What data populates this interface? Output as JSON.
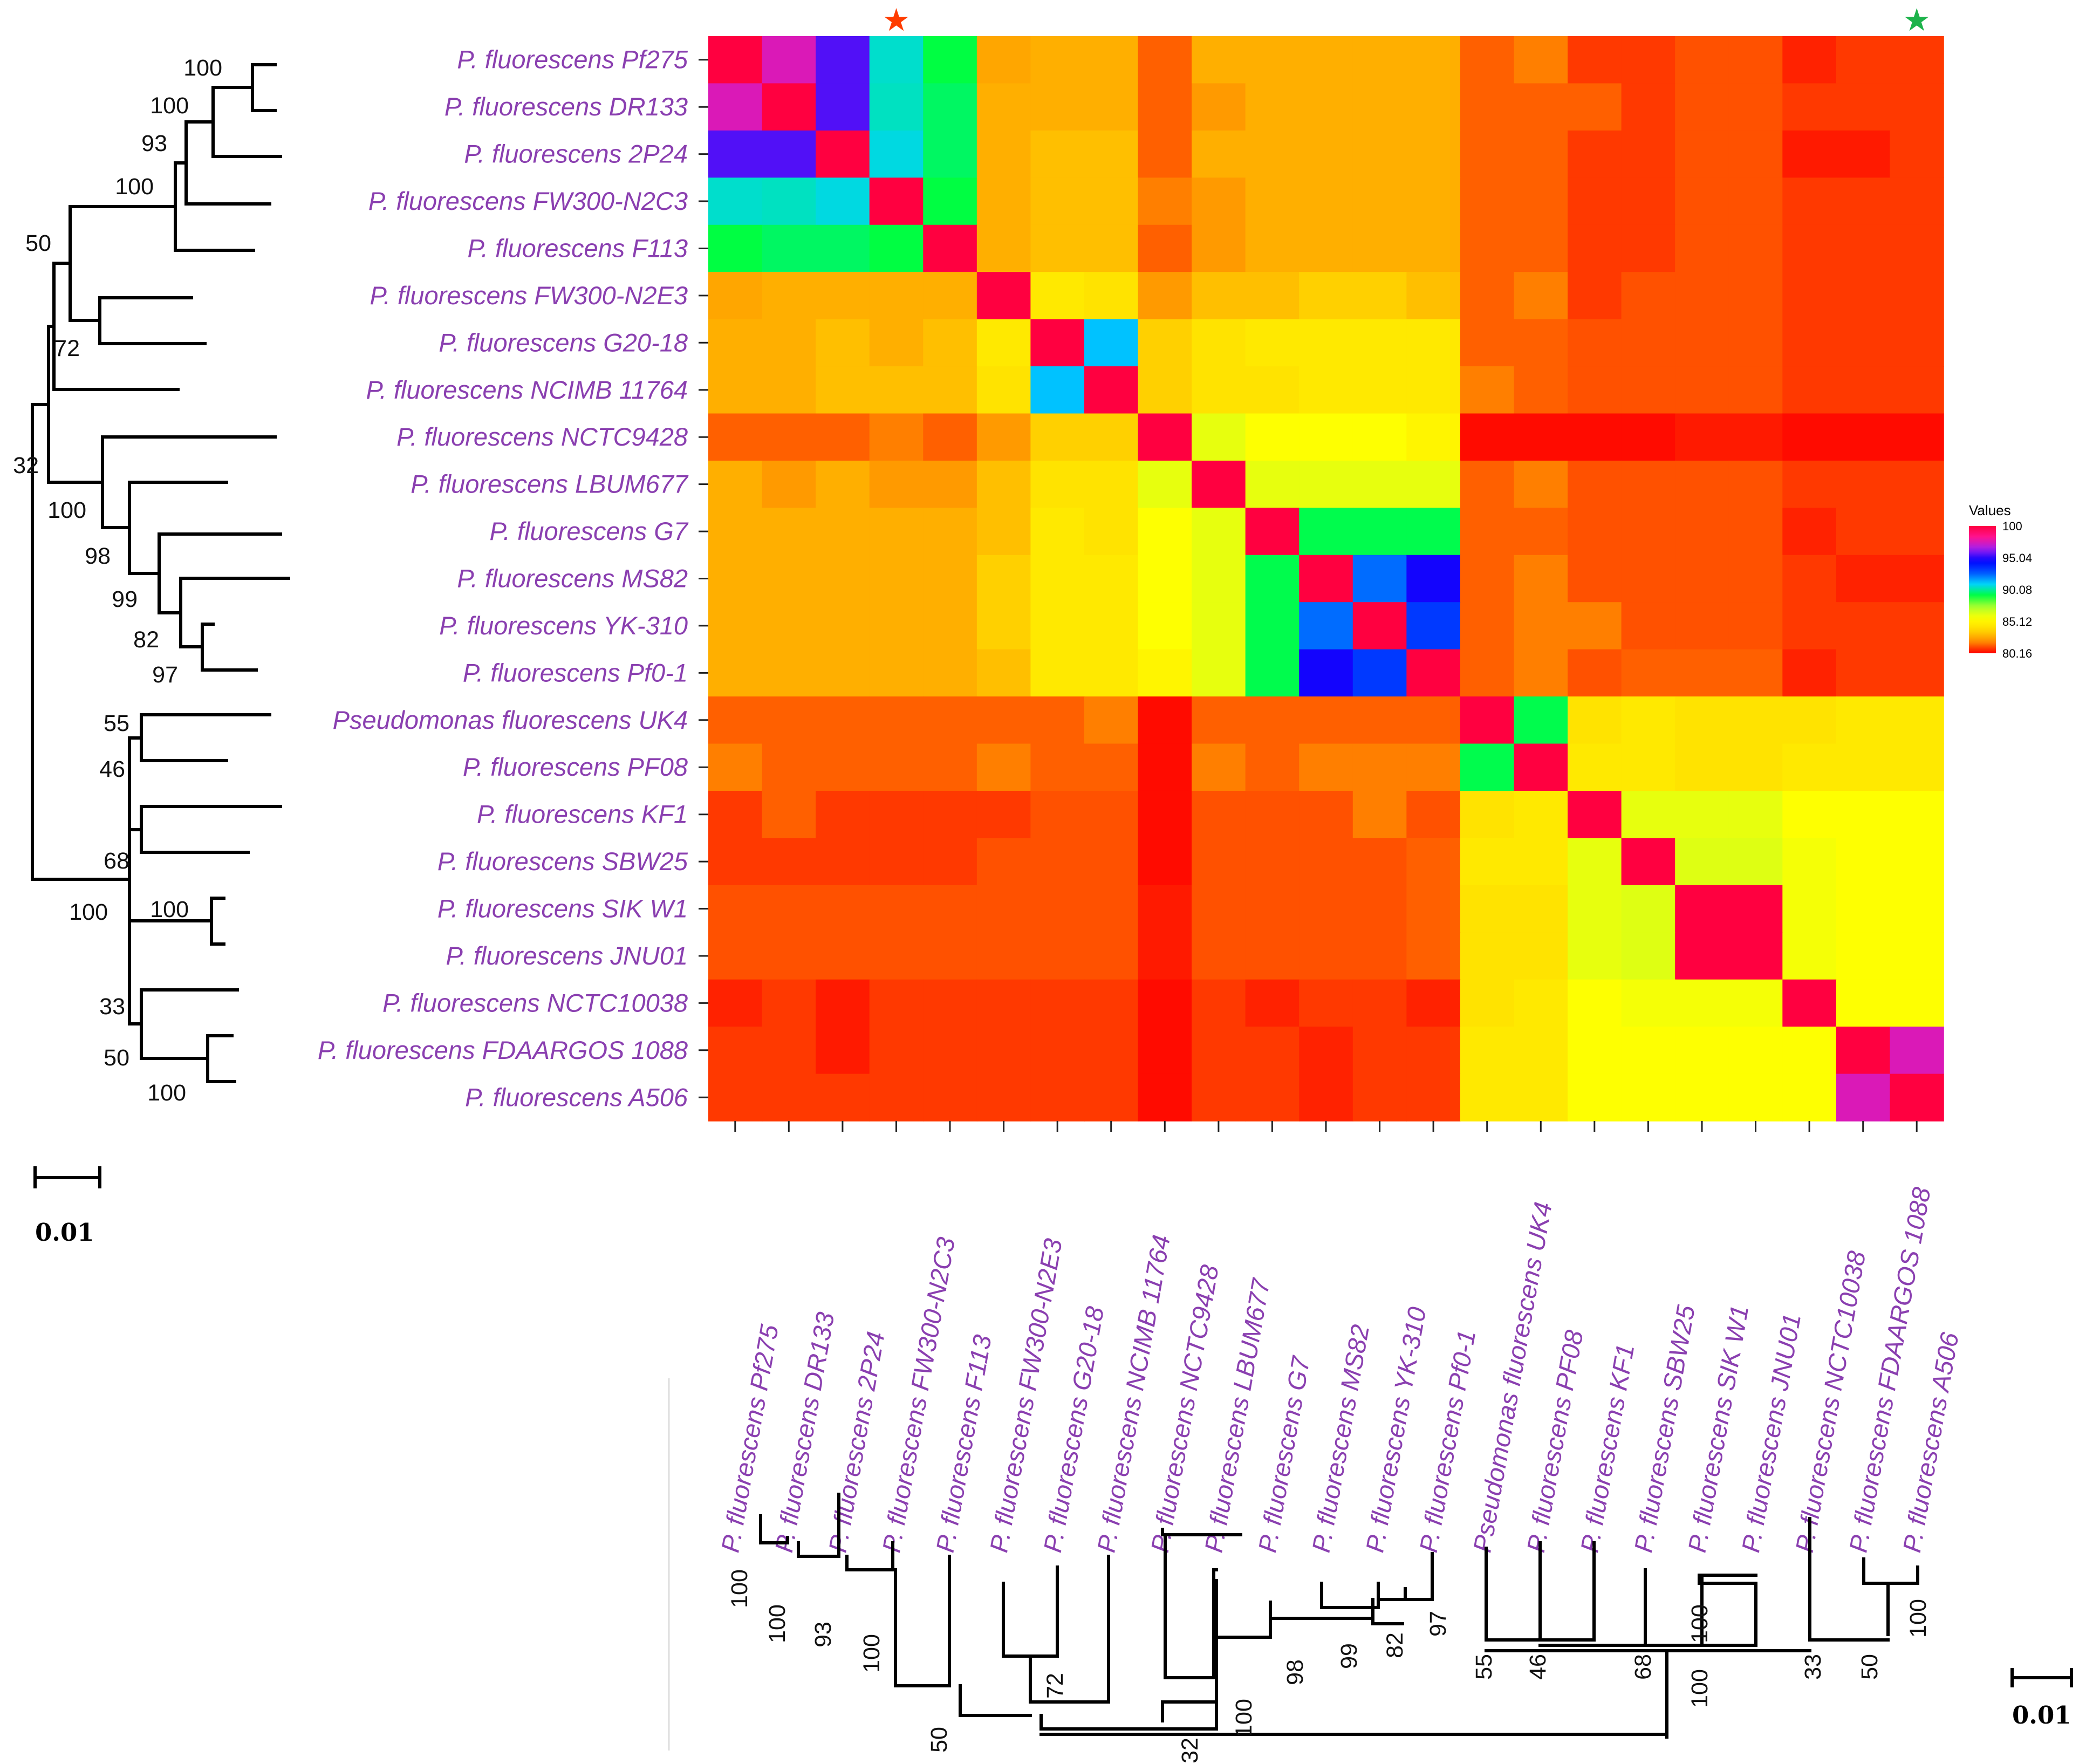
{
  "chart_data": {
    "type": "heatmap",
    "title": "",
    "strains": [
      "P. fluorescens Pf275",
      "P. fluorescens DR133",
      "P. fluorescens 2P24",
      "P. fluorescens FW300-N2C3",
      "P. fluorescens F113",
      "P. fluorescens FW300-N2E3",
      "P. fluorescens G20-18",
      "P. fluorescens NCIMB 11764",
      "P. fluorescens NCTC9428",
      "P. fluorescens LBUM677",
      "P. fluorescens G7",
      "P. fluorescens MS82",
      "P. fluorescens YK-310",
      "P. fluorescens Pf0-1",
      "Pseudomonas fluorescens UK4",
      "P. fluorescens PF08",
      "P. fluorescens KF1",
      "P. fluorescens SBW25",
      "P. fluorescens SIK W1",
      "P. fluorescens JNU01",
      "P. fluorescens NCTC10038",
      "P. fluorescens FDAARGOS 1088",
      "P. fluorescens A506"
    ],
    "matrix": [
      [
        100,
        97.5,
        95.5,
        90.5,
        89.2,
        82.6,
        82.8,
        82.8,
        81.4,
        82.8,
        82.8,
        82.8,
        82.8,
        82.8,
        81.4,
        81.8,
        80.9,
        80.9,
        81.2,
        81.2,
        80.6,
        80.9,
        80.9
      ],
      [
        97.5,
        100,
        95.5,
        90.4,
        89.5,
        82.8,
        82.8,
        82.8,
        81.4,
        82.3,
        82.8,
        82.8,
        82.8,
        82.8,
        81.4,
        81.4,
        81.4,
        80.9,
        81.2,
        81.2,
        80.9,
        80.9,
        80.9
      ],
      [
        95.5,
        95.5,
        100,
        90.7,
        89.5,
        82.8,
        83.2,
        83.2,
        81.4,
        82.8,
        82.8,
        82.8,
        82.8,
        82.8,
        81.4,
        81.4,
        80.9,
        80.9,
        81.2,
        81.2,
        80.5,
        80.5,
        80.9
      ],
      [
        90.5,
        90.4,
        90.7,
        100,
        89.2,
        82.8,
        83.2,
        83.2,
        81.8,
        82.3,
        82.8,
        82.8,
        82.8,
        82.8,
        81.4,
        81.4,
        80.9,
        80.9,
        81.2,
        81.2,
        80.9,
        80.9,
        80.9
      ],
      [
        89.2,
        89.5,
        89.5,
        89.2,
        100,
        82.8,
        83.2,
        83.2,
        81.4,
        82.3,
        82.8,
        82.8,
        82.8,
        82.8,
        81.4,
        81.4,
        80.9,
        80.9,
        81.2,
        81.2,
        80.9,
        80.9,
        80.9
      ],
      [
        82.6,
        82.8,
        82.8,
        82.8,
        82.8,
        100,
        84.6,
        84.3,
        82.3,
        83.2,
        83.2,
        83.6,
        83.6,
        83.2,
        81.4,
        81.8,
        80.9,
        81.2,
        81.2,
        81.2,
        80.9,
        80.9,
        80.9
      ],
      [
        82.8,
        82.8,
        83.2,
        82.8,
        83.2,
        84.6,
        100,
        91.2,
        83.6,
        84.3,
        84.6,
        84.6,
        84.6,
        84.6,
        81.4,
        81.4,
        81.2,
        81.2,
        81.2,
        81.2,
        80.9,
        80.9,
        80.9
      ],
      [
        82.8,
        82.8,
        83.2,
        83.2,
        83.2,
        84.3,
        91.2,
        100,
        83.6,
        84.3,
        84.3,
        84.6,
        84.6,
        84.6,
        81.8,
        81.4,
        81.2,
        81.2,
        81.2,
        81.2,
        80.9,
        80.9,
        80.9
      ],
      [
        81.4,
        81.4,
        81.4,
        81.8,
        81.4,
        82.3,
        83.6,
        83.6,
        100,
        86.1,
        85.6,
        85.6,
        85.6,
        85.1,
        80.3,
        80.3,
        80.3,
        80.3,
        80.5,
        80.5,
        80.3,
        80.3,
        80.3
      ],
      [
        82.8,
        82.3,
        82.8,
        82.3,
        82.3,
        83.2,
        84.3,
        84.3,
        86.1,
        100,
        86.1,
        86.1,
        86.1,
        86.1,
        81.4,
        81.8,
        81.2,
        81.2,
        81.2,
        81.2,
        80.9,
        80.9,
        80.9
      ],
      [
        82.8,
        82.8,
        82.8,
        82.8,
        82.8,
        83.2,
        84.6,
        84.3,
        85.6,
        86.1,
        100,
        89.3,
        89.3,
        89.3,
        81.4,
        81.4,
        81.2,
        81.2,
        81.2,
        81.2,
        80.6,
        80.9,
        80.9
      ],
      [
        82.8,
        82.8,
        82.8,
        82.8,
        82.8,
        83.6,
        84.6,
        84.6,
        85.6,
        86.1,
        89.3,
        100,
        92.4,
        94.8,
        81.4,
        81.8,
        81.2,
        81.2,
        81.2,
        81.2,
        80.9,
        80.6,
        80.6
      ],
      [
        82.8,
        82.8,
        82.8,
        82.8,
        82.8,
        83.6,
        84.6,
        84.6,
        85.6,
        86.1,
        89.3,
        92.4,
        100,
        93.3,
        81.4,
        81.8,
        81.8,
        81.2,
        81.2,
        81.2,
        80.9,
        80.9,
        80.9
      ],
      [
        82.8,
        82.8,
        82.8,
        82.8,
        82.8,
        83.2,
        84.6,
        84.6,
        85.1,
        86.1,
        89.3,
        94.8,
        93.3,
        100,
        81.4,
        81.8,
        81.2,
        81.4,
        81.4,
        81.4,
        80.6,
        80.9,
        80.9
      ],
      [
        81.4,
        81.4,
        81.4,
        81.4,
        81.4,
        81.4,
        81.4,
        81.8,
        80.3,
        81.4,
        81.4,
        81.4,
        81.4,
        81.4,
        100,
        89.3,
        84.3,
        84.6,
        84.3,
        84.3,
        84.3,
        84.6,
        84.6
      ],
      [
        81.8,
        81.4,
        81.4,
        81.4,
        81.4,
        81.8,
        81.4,
        81.4,
        80.3,
        81.8,
        81.4,
        81.8,
        81.8,
        81.8,
        89.3,
        100,
        84.6,
        84.6,
        84.3,
        84.3,
        84.6,
        84.6,
        84.6
      ],
      [
        80.9,
        81.4,
        80.9,
        80.9,
        80.9,
        80.9,
        81.2,
        81.2,
        80.3,
        81.2,
        81.2,
        81.2,
        81.8,
        81.2,
        84.3,
        84.6,
        100,
        86.1,
        86.1,
        86.1,
        85.6,
        85.6,
        85.6
      ],
      [
        80.9,
        80.9,
        80.9,
        80.9,
        80.9,
        81.2,
        81.2,
        81.2,
        80.3,
        81.2,
        81.2,
        81.2,
        81.2,
        81.4,
        84.6,
        84.6,
        86.1,
        100,
        86.3,
        86.3,
        85.8,
        85.6,
        85.6
      ],
      [
        81.2,
        81.2,
        81.2,
        81.2,
        81.2,
        81.2,
        81.2,
        81.2,
        80.5,
        81.2,
        81.2,
        81.2,
        81.2,
        81.4,
        84.3,
        84.3,
        86.1,
        86.3,
        100,
        100,
        85.8,
        85.6,
        85.6
      ],
      [
        81.2,
        81.2,
        81.2,
        81.2,
        81.2,
        81.2,
        81.2,
        81.2,
        80.5,
        81.2,
        81.2,
        81.2,
        81.2,
        81.4,
        84.3,
        84.3,
        86.1,
        86.3,
        100,
        100,
        85.8,
        85.6,
        85.6
      ],
      [
        80.6,
        80.9,
        80.5,
        80.9,
        80.9,
        80.9,
        80.9,
        80.9,
        80.3,
        80.9,
        80.6,
        80.9,
        80.9,
        80.6,
        84.3,
        84.6,
        85.6,
        85.8,
        85.8,
        85.8,
        100,
        85.6,
        85.6
      ],
      [
        80.9,
        80.9,
        80.5,
        80.9,
        80.9,
        80.9,
        80.9,
        80.9,
        80.3,
        80.9,
        80.9,
        80.6,
        80.9,
        80.9,
        84.6,
        84.6,
        85.6,
        85.6,
        85.6,
        85.6,
        85.6,
        100,
        97.5
      ],
      [
        80.9,
        80.9,
        80.9,
        80.9,
        80.9,
        80.9,
        80.9,
        80.9,
        80.3,
        80.9,
        80.9,
        80.6,
        80.9,
        80.9,
        84.6,
        84.6,
        85.6,
        85.6,
        85.6,
        85.6,
        85.6,
        97.5,
        100
      ]
    ],
    "color_scale": {
      "label": "Values",
      "min": 80.16,
      "max": 100,
      "ticks": [
        "100",
        "95.04",
        "90.08",
        "85.12",
        "80.16"
      ],
      "stops": [
        "#ff0000",
        "#ff8c00",
        "#ffd700",
        "#ffff00",
        "#adff2f",
        "#00ff40",
        "#00d2ff",
        "#0050ff",
        "#0000ff",
        "#a020f0",
        "#ff1493",
        "#ff0040"
      ]
    },
    "bootstrap_values": [
      "100",
      "100",
      "93",
      "100",
      "50",
      "72",
      "32",
      "100",
      "98",
      "99",
      "82",
      "97",
      "55",
      "46",
      "68",
      "100",
      "100",
      "33",
      "50",
      "100"
    ],
    "tree_scale_label": "0.01",
    "star_markers": [
      {
        "column": 3,
        "color": "#ff3c00",
        "symbol": "★"
      },
      {
        "column": 22,
        "color": "#1db34b",
        "symbol": "★"
      }
    ]
  }
}
